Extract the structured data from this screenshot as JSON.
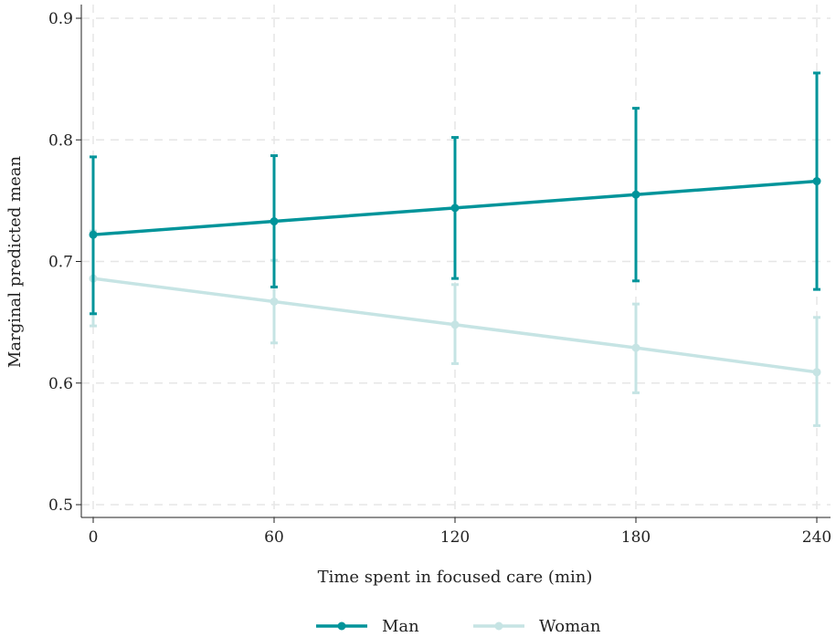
{
  "chart_data": {
    "type": "line",
    "title": "",
    "xlabel": "Time spent in focused care (min)",
    "ylabel": "Marginal predicted mean",
    "x": [
      0,
      60,
      120,
      180,
      240
    ],
    "xticks": [
      "0",
      "60",
      "120",
      "180",
      "240"
    ],
    "yticks": [
      "0.5",
      "0.6",
      "0.7",
      "0.8",
      "0.9"
    ],
    "xlim": [
      0,
      240
    ],
    "ylim": [
      0.5,
      0.9
    ],
    "grid": true,
    "legend_position": "bottom",
    "series": [
      {
        "name": "Man",
        "color": "#00949a",
        "values": [
          0.722,
          0.733,
          0.744,
          0.755,
          0.766
        ],
        "ci_low": [
          0.657,
          0.679,
          0.686,
          0.684,
          0.677
        ],
        "ci_high": [
          0.786,
          0.787,
          0.802,
          0.826,
          0.855
        ]
      },
      {
        "name": "Woman",
        "color": "#c6e4e4",
        "values": [
          0.686,
          0.667,
          0.648,
          0.629,
          0.609
        ],
        "ci_low": [
          0.647,
          0.633,
          0.616,
          0.592,
          0.565
        ],
        "ci_high": [
          0.725,
          0.701,
          0.681,
          0.665,
          0.654
        ]
      }
    ]
  }
}
